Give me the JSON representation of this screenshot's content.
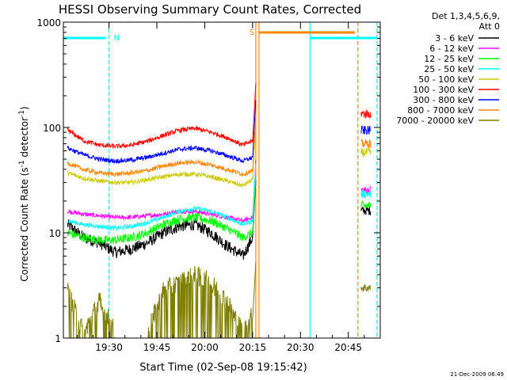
{
  "chart_data": {
    "type": "line",
    "title": "HESSI Observing Summary Count Rates, Corrected",
    "xlabel": "Start Time (02-Sep-08 19:15:42)",
    "ylabel_main": "Corrected Count Rate (s",
    "ylabel_sup1": "-1",
    "ylabel_mid": " detector",
    "ylabel_sup2": "-1",
    "ylabel_end": ")",
    "yscale": "log",
    "ylim": [
      1,
      1000
    ],
    "xlim": [
      "19:15:42",
      "20:55:00"
    ],
    "x_ticks": [
      "19:30",
      "19:45",
      "20:00",
      "20:15",
      "20:30",
      "20:45"
    ],
    "y_ticks": [
      "1",
      "10",
      "100",
      "1000"
    ],
    "legend": {
      "header": [
        "Det 1,3,4,5,6,9,",
        "Att 0"
      ],
      "placement": "outside-right"
    },
    "series": [
      {
        "name": "3 - 6 keV",
        "color": "#000000",
        "x": [
          "19:17",
          "19:22",
          "19:27",
          "19:32",
          "19:37",
          "19:42",
          "19:47",
          "19:52",
          "19:57",
          "20:02",
          "20:07",
          "20:12",
          "20:15"
        ],
        "values": [
          12,
          9,
          8,
          6.5,
          7,
          8,
          10,
          11.5,
          12,
          10,
          7.5,
          6,
          9
        ]
      },
      {
        "name": "6 - 12 keV",
        "color": "#ff00ff",
        "x": [
          "19:17",
          "19:22",
          "19:27",
          "19:32",
          "19:37",
          "19:42",
          "19:47",
          "19:52",
          "19:57",
          "20:02",
          "20:07",
          "20:12",
          "20:15"
        ],
        "values": [
          16,
          15,
          14.5,
          14,
          14,
          14.5,
          15,
          16,
          16,
          15,
          14,
          13,
          14
        ]
      },
      {
        "name": "12 - 25 keV",
        "color": "#00ff00",
        "x": [
          "19:17",
          "19:22",
          "19:27",
          "19:32",
          "19:37",
          "19:42",
          "19:47",
          "19:52",
          "19:57",
          "20:02",
          "20:07",
          "20:12",
          "20:15"
        ],
        "values": [
          10,
          9,
          8.5,
          8.5,
          9,
          10,
          12,
          13.5,
          14,
          13,
          11,
          9,
          10
        ]
      },
      {
        "name": "25 - 50 keV",
        "color": "#00ffff",
        "x": [
          "19:17",
          "19:22",
          "19:27",
          "19:32",
          "19:37",
          "19:42",
          "19:47",
          "19:52",
          "19:57",
          "20:02",
          "20:07",
          "20:12",
          "20:15"
        ],
        "values": [
          13,
          12,
          11.5,
          11,
          11.5,
          12.5,
          14,
          16,
          17,
          16,
          14,
          12,
          13
        ]
      },
      {
        "name": "50 - 100 keV",
        "color": "#cccc00",
        "x": [
          "19:17",
          "19:22",
          "19:27",
          "19:32",
          "19:37",
          "19:42",
          "19:47",
          "19:52",
          "19:57",
          "20:02",
          "20:07",
          "20:12",
          "20:15"
        ],
        "values": [
          37,
          33,
          31,
          30,
          30,
          32,
          34,
          36,
          36,
          34,
          31,
          28,
          32
        ]
      },
      {
        "name": "100 - 300 keV",
        "color": "#ff0000",
        "x": [
          "19:17",
          "19:22",
          "19:27",
          "19:32",
          "19:37",
          "19:42",
          "19:47",
          "19:52",
          "19:57",
          "20:02",
          "20:07",
          "20:12",
          "20:15"
        ],
        "values": [
          95,
          75,
          68,
          66,
          68,
          74,
          84,
          94,
          98,
          90,
          80,
          68,
          75
        ]
      },
      {
        "name": "300 - 800 keV",
        "color": "#0000ff",
        "x": [
          "19:17",
          "19:22",
          "19:27",
          "19:32",
          "19:37",
          "19:42",
          "19:47",
          "19:52",
          "19:57",
          "20:02",
          "20:07",
          "20:12",
          "20:15"
        ],
        "values": [
          64,
          55,
          50,
          48,
          49,
          52,
          57,
          62,
          64,
          60,
          54,
          48,
          52
        ]
      },
      {
        "name": "800 - 7000 keV",
        "color": "#ff8800",
        "x": [
          "19:17",
          "19:22",
          "19:27",
          "19:32",
          "19:37",
          "19:42",
          "19:47",
          "19:52",
          "19:57",
          "20:02",
          "20:07",
          "20:12",
          "20:15"
        ],
        "values": [
          46,
          40,
          37,
          36,
          37,
          39,
          43,
          46,
          47,
          44,
          40,
          36,
          39
        ]
      },
      {
        "name": "7000 - 20000 keV",
        "color": "#808000",
        "x": [
          "19:17",
          "19:22",
          "19:27",
          "19:32",
          "19:37",
          "19:42",
          "19:47",
          "19:52",
          "19:57",
          "20:02",
          "20:07",
          "20:12",
          "20:15"
        ],
        "values": [
          2.5,
          1,
          2,
          1,
          1,
          1,
          2.5,
          3,
          3.5,
          3,
          2,
          1,
          1.5
        ]
      }
    ],
    "annotations": [
      {
        "text": "N",
        "time": "19:30",
        "color": "#00ffff"
      },
      {
        "text": "S",
        "time": "20:16",
        "color": "#ff8800"
      }
    ]
  },
  "footer_timestamp": "21-Dec-2009 06:49"
}
